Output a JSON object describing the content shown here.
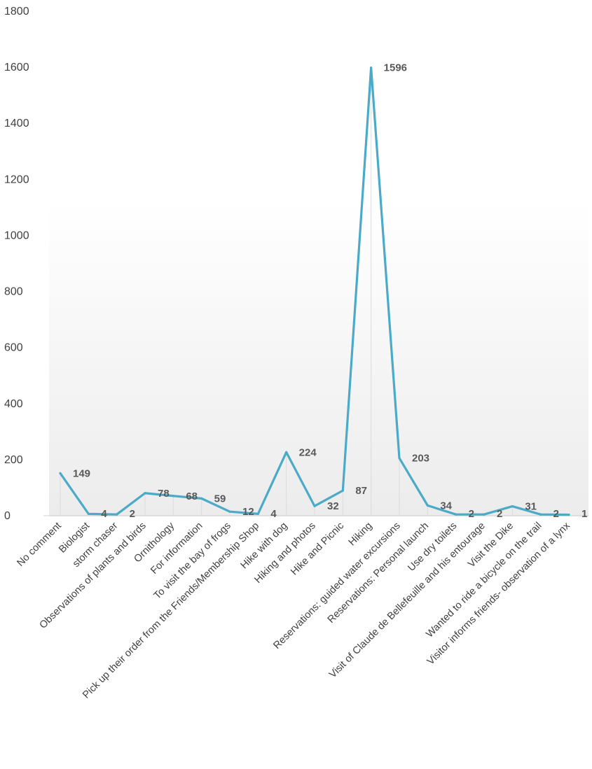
{
  "chart_data": {
    "type": "line",
    "title": "",
    "xlabel": "",
    "ylabel": "",
    "ylim": [
      0,
      1800
    ],
    "yticks": [
      0,
      200,
      400,
      600,
      800,
      1000,
      1200,
      1400,
      1600,
      1800
    ],
    "grid": false,
    "legend": "none",
    "line_color": "#4aaac7",
    "categories": [
      "No comment",
      "Biologist",
      "storm chaser",
      "Observations of plants and birds",
      "Ornithology",
      "For information",
      "To visit the bay of frogs",
      "Pick up their order from the Friends/Membership Shop",
      "Hike with dog",
      "Hiking and photos",
      "Hike and Picnic",
      "Hiking",
      "Reservations: guided water excursions",
      "Reservations: Personal launch",
      "Use dry toilets",
      "Visit of Claude de Bellefeuille and his entourage",
      "Visit the Dike",
      "Wanted to ride a bicycle on the trail",
      "Visitor informs friends- observation of a lynx"
    ],
    "values": [
      149,
      4,
      2,
      78,
      68,
      59,
      12,
      4,
      224,
      32,
      87,
      1596,
      203,
      34,
      2,
      2,
      31,
      2,
      1
    ]
  }
}
